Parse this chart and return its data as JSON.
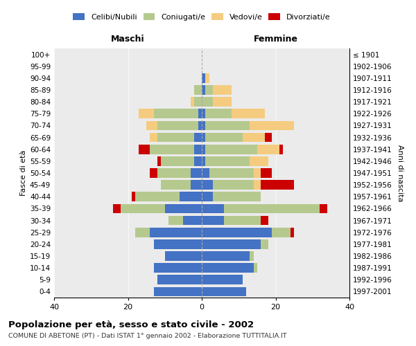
{
  "age_groups": [
    "0-4",
    "5-9",
    "10-14",
    "15-19",
    "20-24",
    "25-29",
    "30-34",
    "35-39",
    "40-44",
    "45-49",
    "50-54",
    "55-59",
    "60-64",
    "65-69",
    "70-74",
    "75-79",
    "80-84",
    "85-89",
    "90-94",
    "95-99",
    "100+"
  ],
  "birth_years": [
    "1997-2001",
    "1992-1996",
    "1987-1991",
    "1982-1986",
    "1977-1981",
    "1972-1976",
    "1967-1971",
    "1962-1966",
    "1957-1961",
    "1952-1956",
    "1947-1951",
    "1942-1946",
    "1937-1941",
    "1932-1936",
    "1927-1931",
    "1922-1926",
    "1917-1921",
    "1912-1916",
    "1907-1911",
    "1902-1906",
    "≤ 1901"
  ],
  "males": {
    "celibi": [
      13,
      12,
      13,
      10,
      13,
      14,
      5,
      10,
      6,
      3,
      3,
      2,
      2,
      2,
      1,
      1,
      0,
      0,
      0,
      0,
      0
    ],
    "coniugati": [
      0,
      0,
      0,
      0,
      0,
      4,
      4,
      12,
      12,
      8,
      9,
      9,
      12,
      10,
      11,
      12,
      2,
      2,
      0,
      0,
      0
    ],
    "vedovi": [
      0,
      0,
      0,
      0,
      0,
      0,
      0,
      0,
      0,
      0,
      0,
      0,
      0,
      2,
      3,
      4,
      1,
      0,
      0,
      0,
      0
    ],
    "divorziati": [
      0,
      0,
      0,
      0,
      0,
      0,
      0,
      2,
      1,
      0,
      2,
      1,
      3,
      0,
      0,
      0,
      0,
      0,
      0,
      0,
      0
    ]
  },
  "females": {
    "nubili": [
      12,
      11,
      14,
      13,
      16,
      19,
      6,
      6,
      3,
      3,
      2,
      1,
      1,
      1,
      1,
      1,
      0,
      1,
      1,
      0,
      0
    ],
    "coniugate": [
      0,
      0,
      1,
      1,
      2,
      5,
      10,
      26,
      13,
      11,
      12,
      12,
      14,
      10,
      12,
      7,
      3,
      2,
      0,
      0,
      0
    ],
    "vedove": [
      0,
      0,
      0,
      0,
      0,
      0,
      0,
      0,
      0,
      2,
      2,
      5,
      6,
      6,
      12,
      9,
      5,
      5,
      1,
      0,
      0
    ],
    "divorziate": [
      0,
      0,
      0,
      0,
      0,
      1,
      2,
      2,
      0,
      9,
      3,
      0,
      1,
      2,
      0,
      0,
      0,
      0,
      0,
      0,
      0
    ]
  },
  "color_celibi": "#4472c4",
  "color_coniugati": "#b5c98e",
  "color_vedovi": "#f5cc7f",
  "color_divorziati": "#cc0000",
  "title": "Popolazione per età, sesso e stato civile - 2002",
  "subtitle": "COMUNE DI ABETONE (PT) - Dati ISTAT 1° gennaio 2002 - Elaborazione TUTTITALIA.IT",
  "xlabel_left": "Maschi",
  "xlabel_right": "Femmine",
  "ylabel_left": "Fasce di età",
  "ylabel_right": "Anni di nascita",
  "xlim": 40,
  "bg_color": "#ffffff",
  "plot_bg_color": "#ebebeb",
  "grid_color": "#ffffff"
}
